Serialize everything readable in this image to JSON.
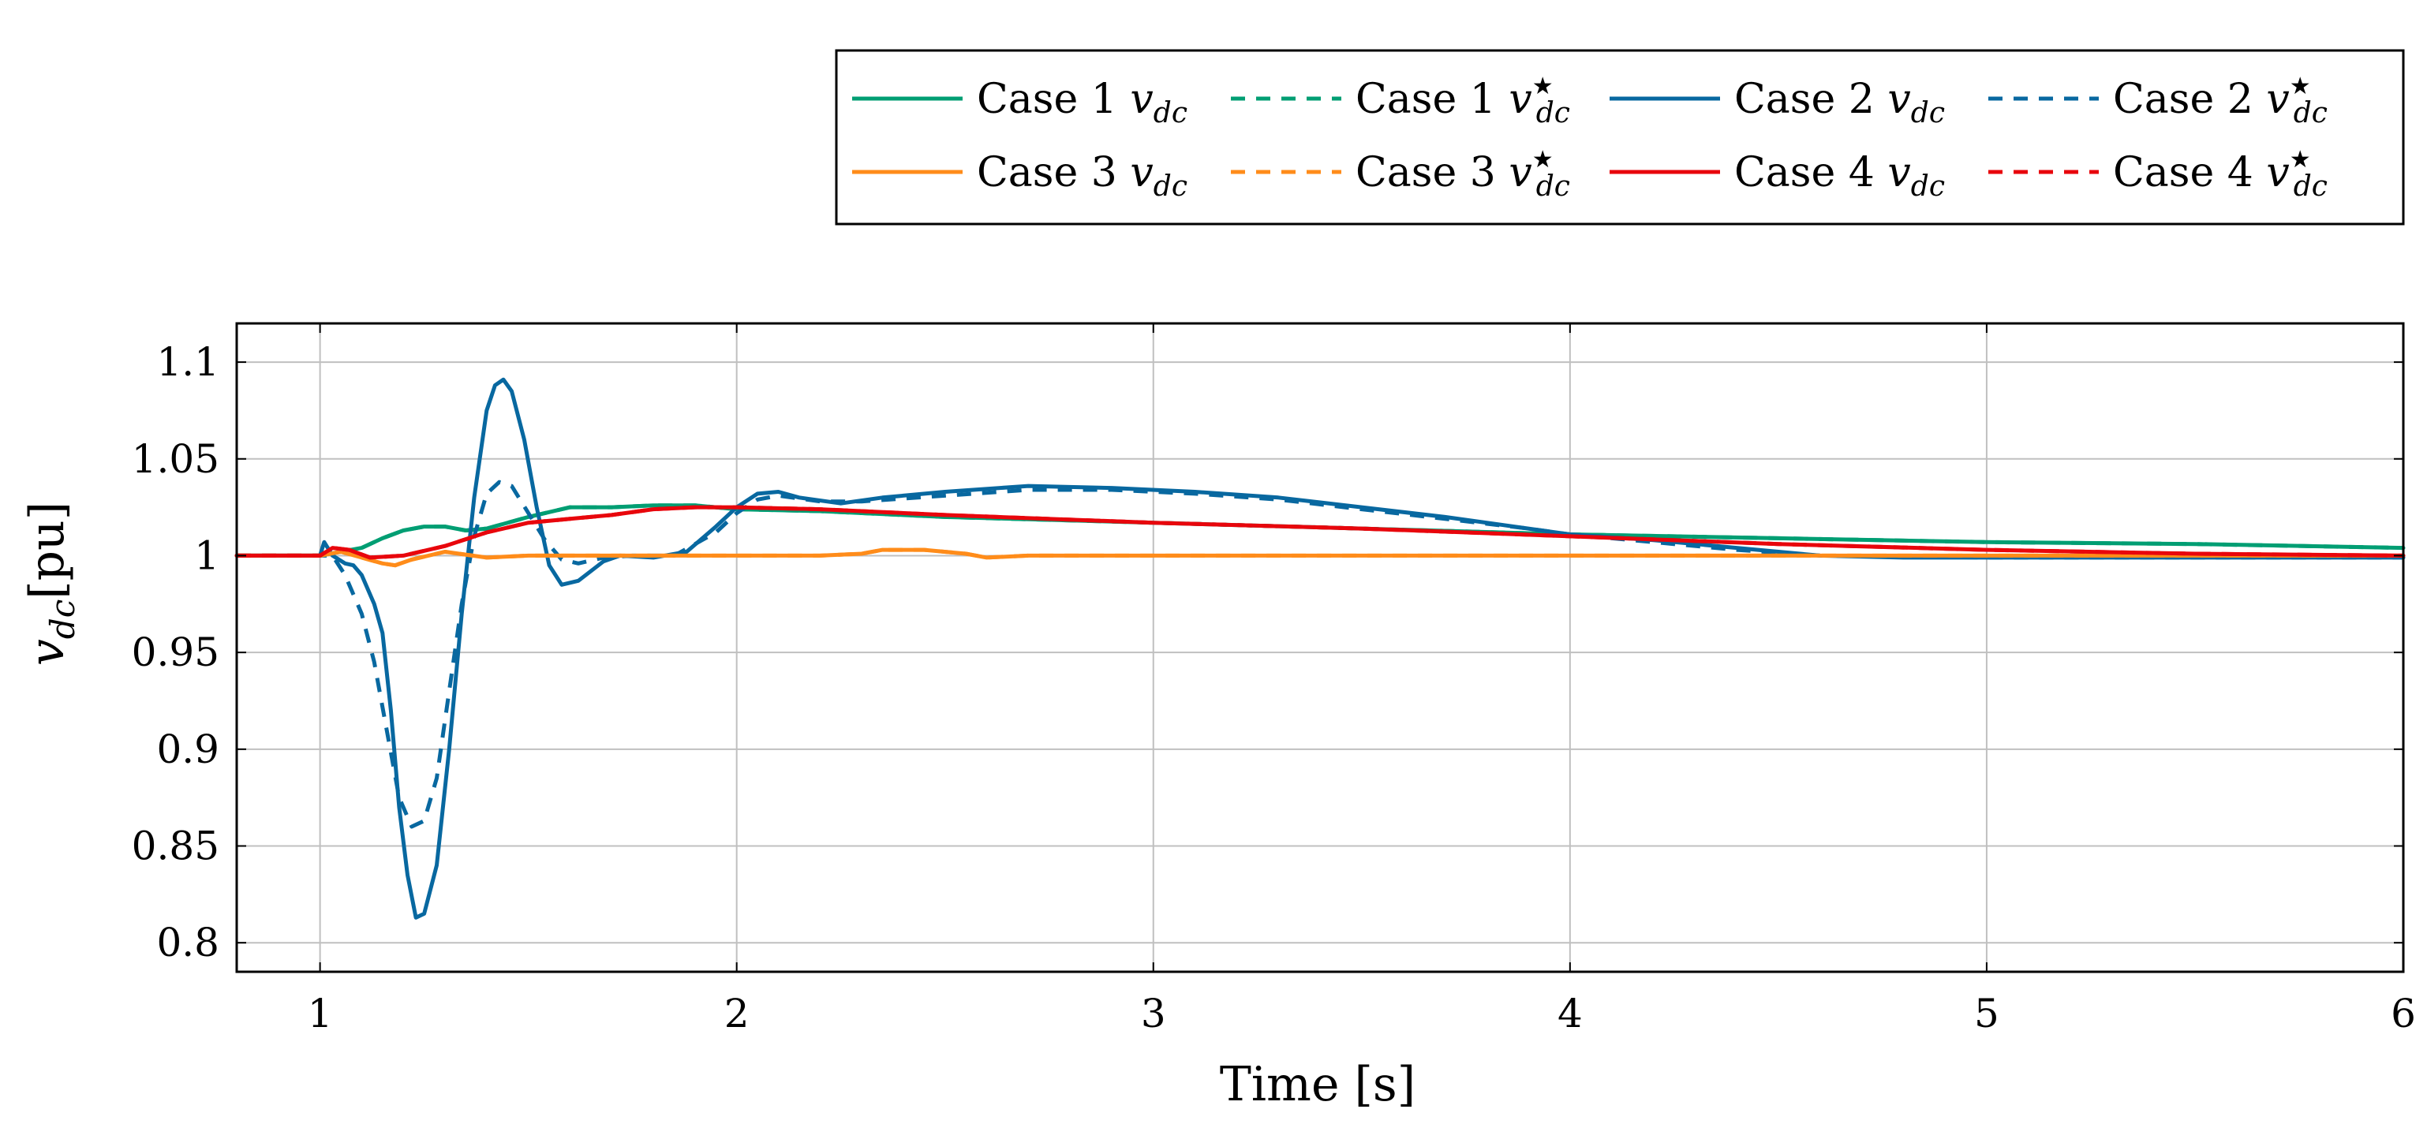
{
  "chart_data": {
    "type": "line",
    "title": "",
    "xlabel": "Time [s]",
    "ylabel_var": "v",
    "ylabel_sub": "dc",
    "ylabel_unit": "[pu]",
    "xlim": [
      0.8,
      6
    ],
    "ylim": [
      0.785,
      1.12
    ],
    "xticks": [
      1,
      2,
      3,
      4,
      5,
      6
    ],
    "xtick_labels": [
      "1",
      "2",
      "3",
      "4",
      "5",
      "6"
    ],
    "yticks": [
      0.8,
      0.85,
      0.9,
      0.95,
      1,
      1.05,
      1.1
    ],
    "ytick_labels": [
      "0.8",
      "0.85",
      "0.9",
      "0.95",
      "1",
      "1.05",
      "1.1"
    ],
    "grid": true,
    "legend_position": "top-right",
    "series": [
      {
        "name": "Case 1 v_dc",
        "label_prefix": "Case 1",
        "label_var": "v",
        "label_sub": "dc",
        "label_star": "",
        "color": "#009E73",
        "dash": false,
        "points": [
          [
            0.8,
            1.0
          ],
          [
            1.0,
            1.0
          ],
          [
            1.05,
            1.002
          ],
          [
            1.1,
            1.004
          ],
          [
            1.15,
            1.009
          ],
          [
            1.2,
            1.013
          ],
          [
            1.25,
            1.015
          ],
          [
            1.3,
            1.015
          ],
          [
            1.35,
            1.013
          ],
          [
            1.4,
            1.014
          ],
          [
            1.5,
            1.02
          ],
          [
            1.6,
            1.025
          ],
          [
            1.7,
            1.025
          ],
          [
            1.8,
            1.026
          ],
          [
            1.9,
            1.026
          ],
          [
            2.0,
            1.024
          ],
          [
            2.2,
            1.023
          ],
          [
            2.5,
            1.02
          ],
          [
            3.0,
            1.017
          ],
          [
            3.5,
            1.014
          ],
          [
            4.0,
            1.011
          ],
          [
            4.5,
            1.009
          ],
          [
            5.0,
            1.007
          ],
          [
            5.5,
            1.006
          ],
          [
            6.0,
            1.004
          ]
        ]
      },
      {
        "name": "Case 1 v_dc*",
        "label_prefix": "Case 1",
        "label_var": "v",
        "label_sub": "dc",
        "label_star": "★",
        "color": "#009E73",
        "dash": true,
        "points": [
          [
            0.8,
            1.0
          ],
          [
            1.0,
            1.0
          ],
          [
            1.05,
            1.002
          ],
          [
            1.1,
            1.004
          ],
          [
            1.15,
            1.009
          ],
          [
            1.2,
            1.013
          ],
          [
            1.25,
            1.015
          ],
          [
            1.3,
            1.015
          ],
          [
            1.35,
            1.013
          ],
          [
            1.4,
            1.014
          ],
          [
            1.5,
            1.02
          ],
          [
            1.6,
            1.025
          ],
          [
            1.7,
            1.025
          ],
          [
            1.8,
            1.026
          ],
          [
            1.9,
            1.026
          ],
          [
            2.0,
            1.024
          ],
          [
            2.2,
            1.023
          ],
          [
            2.5,
            1.02
          ],
          [
            3.0,
            1.017
          ],
          [
            3.5,
            1.014
          ],
          [
            4.0,
            1.011
          ],
          [
            4.5,
            1.009
          ],
          [
            5.0,
            1.007
          ],
          [
            5.5,
            1.006
          ],
          [
            6.0,
            1.004
          ]
        ]
      },
      {
        "name": "Case 2 v_dc",
        "label_prefix": "Case 2",
        "label_var": "v",
        "label_sub": "dc",
        "label_star": "",
        "color": "#0868A0",
        "dash": false,
        "points": [
          [
            0.8,
            1.0
          ],
          [
            1.0,
            1.0
          ],
          [
            1.01,
            1.007
          ],
          [
            1.03,
            1.0
          ],
          [
            1.06,
            0.996
          ],
          [
            1.08,
            0.995
          ],
          [
            1.1,
            0.99
          ],
          [
            1.13,
            0.975
          ],
          [
            1.15,
            0.96
          ],
          [
            1.17,
            0.92
          ],
          [
            1.19,
            0.87
          ],
          [
            1.21,
            0.835
          ],
          [
            1.23,
            0.813
          ],
          [
            1.25,
            0.815
          ],
          [
            1.28,
            0.84
          ],
          [
            1.31,
            0.9
          ],
          [
            1.34,
            0.97
          ],
          [
            1.37,
            1.03
          ],
          [
            1.4,
            1.075
          ],
          [
            1.42,
            1.088
          ],
          [
            1.44,
            1.091
          ],
          [
            1.46,
            1.085
          ],
          [
            1.49,
            1.06
          ],
          [
            1.52,
            1.025
          ],
          [
            1.55,
            0.995
          ],
          [
            1.58,
            0.985
          ],
          [
            1.62,
            0.987
          ],
          [
            1.68,
            0.997
          ],
          [
            1.72,
            1.0
          ],
          [
            1.8,
            0.999
          ],
          [
            1.88,
            1.002
          ],
          [
            1.95,
            1.015
          ],
          [
            2.0,
            1.025
          ],
          [
            2.05,
            1.032
          ],
          [
            2.1,
            1.033
          ],
          [
            2.15,
            1.03
          ],
          [
            2.25,
            1.027
          ],
          [
            2.35,
            1.03
          ],
          [
            2.5,
            1.033
          ],
          [
            2.7,
            1.036
          ],
          [
            2.9,
            1.035
          ],
          [
            3.1,
            1.033
          ],
          [
            3.3,
            1.03
          ],
          [
            3.5,
            1.025
          ],
          [
            3.7,
            1.02
          ],
          [
            3.9,
            1.014
          ],
          [
            4.0,
            1.011
          ],
          [
            4.2,
            1.008
          ],
          [
            4.4,
            1.004
          ],
          [
            4.6,
            1.0
          ],
          [
            4.8,
            0.999
          ],
          [
            5.0,
            0.999
          ],
          [
            5.5,
            0.999
          ],
          [
            6.0,
            0.999
          ]
        ]
      },
      {
        "name": "Case 2 v_dc*",
        "label_prefix": "Case 2",
        "label_var": "v",
        "label_sub": "dc",
        "label_star": "★",
        "color": "#0868A0",
        "dash": true,
        "points": [
          [
            0.8,
            1.0
          ],
          [
            1.0,
            1.0
          ],
          [
            1.03,
            1.0
          ],
          [
            1.06,
            0.99
          ],
          [
            1.1,
            0.97
          ],
          [
            1.13,
            0.945
          ],
          [
            1.16,
            0.91
          ],
          [
            1.19,
            0.875
          ],
          [
            1.22,
            0.86
          ],
          [
            1.25,
            0.863
          ],
          [
            1.28,
            0.885
          ],
          [
            1.31,
            0.93
          ],
          [
            1.34,
            0.975
          ],
          [
            1.37,
            1.01
          ],
          [
            1.4,
            1.032
          ],
          [
            1.43,
            1.038
          ],
          [
            1.46,
            1.036
          ],
          [
            1.5,
            1.022
          ],
          [
            1.54,
            1.008
          ],
          [
            1.58,
            0.998
          ],
          [
            1.62,
            0.996
          ],
          [
            1.68,
            0.999
          ],
          [
            1.75,
            1.0
          ],
          [
            1.85,
            1.0
          ],
          [
            1.95,
            1.012
          ],
          [
            2.0,
            1.022
          ],
          [
            2.05,
            1.029
          ],
          [
            2.1,
            1.031
          ],
          [
            2.2,
            1.028
          ],
          [
            2.3,
            1.028
          ],
          [
            2.5,
            1.031
          ],
          [
            2.7,
            1.034
          ],
          [
            2.9,
            1.034
          ],
          [
            3.1,
            1.032
          ],
          [
            3.3,
            1.029
          ],
          [
            3.5,
            1.024
          ],
          [
            3.7,
            1.019
          ],
          [
            3.9,
            1.014
          ],
          [
            4.0,
            1.011
          ],
          [
            4.2,
            1.007
          ],
          [
            4.4,
            1.003
          ],
          [
            4.6,
            1.0
          ],
          [
            5.0,
            0.999
          ],
          [
            6.0,
            0.999
          ]
        ]
      },
      {
        "name": "Case 3 v_dc",
        "label_prefix": "Case 3",
        "label_var": "v",
        "label_sub": "dc",
        "label_star": "",
        "color": "#FF8C1A",
        "dash": false,
        "points": [
          [
            0.8,
            1.0
          ],
          [
            1.0,
            1.0
          ],
          [
            1.05,
            1.002
          ],
          [
            1.1,
            0.999
          ],
          [
            1.15,
            0.996
          ],
          [
            1.18,
            0.995
          ],
          [
            1.22,
            0.998
          ],
          [
            1.3,
            1.002
          ],
          [
            1.4,
            0.999
          ],
          [
            1.5,
            1.0
          ],
          [
            1.8,
            1.0
          ],
          [
            2.0,
            1.0
          ],
          [
            2.2,
            1.0
          ],
          [
            2.3,
            1.001
          ],
          [
            2.35,
            1.003
          ],
          [
            2.45,
            1.003
          ],
          [
            2.55,
            1.001
          ],
          [
            2.6,
            0.999
          ],
          [
            2.7,
            1.0
          ],
          [
            3.0,
            1.0
          ],
          [
            4.0,
            1.0
          ],
          [
            5.0,
            1.0
          ],
          [
            6.0,
            1.0
          ]
        ]
      },
      {
        "name": "Case 3 v_dc*",
        "label_prefix": "Case 3",
        "label_var": "v",
        "label_sub": "dc",
        "label_star": "★",
        "color": "#FF8C1A",
        "dash": true,
        "points": [
          [
            0.8,
            1.0
          ],
          [
            1.0,
            1.0
          ],
          [
            1.05,
            1.002
          ],
          [
            1.1,
            0.999
          ],
          [
            1.15,
            0.996
          ],
          [
            1.18,
            0.995
          ],
          [
            1.22,
            0.998
          ],
          [
            1.3,
            1.002
          ],
          [
            1.4,
            0.999
          ],
          [
            1.5,
            1.0
          ],
          [
            1.8,
            1.0
          ],
          [
            2.0,
            1.0
          ],
          [
            2.2,
            1.0
          ],
          [
            2.3,
            1.001
          ],
          [
            2.35,
            1.003
          ],
          [
            2.45,
            1.003
          ],
          [
            2.55,
            1.001
          ],
          [
            2.6,
            0.999
          ],
          [
            2.7,
            1.0
          ],
          [
            3.0,
            1.0
          ],
          [
            4.0,
            1.0
          ],
          [
            5.0,
            1.0
          ],
          [
            6.0,
            1.0
          ]
        ]
      },
      {
        "name": "Case 4 v_dc",
        "label_prefix": "Case 4",
        "label_var": "v",
        "label_sub": "dc",
        "label_star": "",
        "color": "#E8060C",
        "dash": false,
        "points": [
          [
            0.8,
            1.0
          ],
          [
            1.0,
            1.0
          ],
          [
            1.03,
            1.004
          ],
          [
            1.07,
            1.003
          ],
          [
            1.12,
            0.999
          ],
          [
            1.2,
            1.0
          ],
          [
            1.3,
            1.005
          ],
          [
            1.4,
            1.012
          ],
          [
            1.5,
            1.017
          ],
          [
            1.6,
            1.019
          ],
          [
            1.7,
            1.021
          ],
          [
            1.8,
            1.024
          ],
          [
            1.9,
            1.025
          ],
          [
            2.0,
            1.025
          ],
          [
            2.2,
            1.024
          ],
          [
            2.5,
            1.021
          ],
          [
            3.0,
            1.017
          ],
          [
            3.5,
            1.014
          ],
          [
            4.0,
            1.01
          ],
          [
            4.5,
            1.006
          ],
          [
            5.0,
            1.003
          ],
          [
            5.5,
            1.001
          ],
          [
            6.0,
            1.0
          ]
        ]
      },
      {
        "name": "Case 4 v_dc*",
        "label_prefix": "Case 4",
        "label_var": "v",
        "label_sub": "dc",
        "label_star": "★",
        "color": "#E8060C",
        "dash": true,
        "points": [
          [
            0.8,
            1.0
          ],
          [
            1.0,
            1.0
          ],
          [
            1.03,
            1.004
          ],
          [
            1.07,
            1.003
          ],
          [
            1.12,
            0.999
          ],
          [
            1.2,
            1.0
          ],
          [
            1.3,
            1.005
          ],
          [
            1.4,
            1.012
          ],
          [
            1.5,
            1.017
          ],
          [
            1.6,
            1.019
          ],
          [
            1.7,
            1.021
          ],
          [
            1.8,
            1.024
          ],
          [
            1.9,
            1.025
          ],
          [
            2.0,
            1.025
          ],
          [
            2.2,
            1.024
          ],
          [
            2.5,
            1.021
          ],
          [
            3.0,
            1.017
          ],
          [
            3.5,
            1.014
          ],
          [
            4.0,
            1.01
          ],
          [
            4.5,
            1.006
          ],
          [
            5.0,
            1.003
          ],
          [
            5.5,
            1.001
          ],
          [
            6.0,
            1.0
          ]
        ]
      }
    ]
  }
}
